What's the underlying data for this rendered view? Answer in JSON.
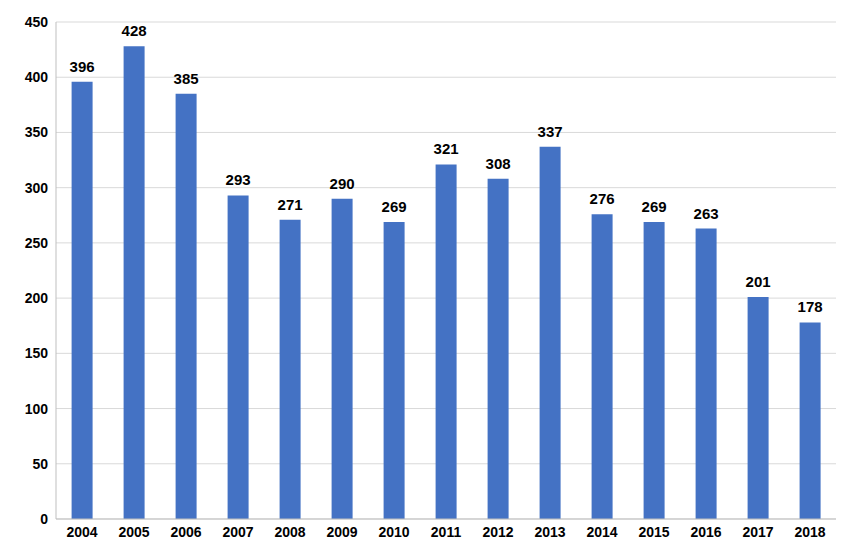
{
  "chart_data": {
    "type": "bar",
    "categories": [
      "2004",
      "2005",
      "2006",
      "2007",
      "2008",
      "2009",
      "2010",
      "2011",
      "2012",
      "2013",
      "2014",
      "2015",
      "2016",
      "2017",
      "2018"
    ],
    "values": [
      396,
      428,
      385,
      293,
      271,
      290,
      269,
      321,
      308,
      337,
      276,
      269,
      263,
      201,
      178
    ],
    "color": "#4472c4",
    "ylim": [
      0,
      450
    ],
    "yticks": [
      0,
      50,
      100,
      150,
      200,
      250,
      300,
      350,
      400,
      450
    ],
    "grid": true,
    "data_labels": true
  }
}
